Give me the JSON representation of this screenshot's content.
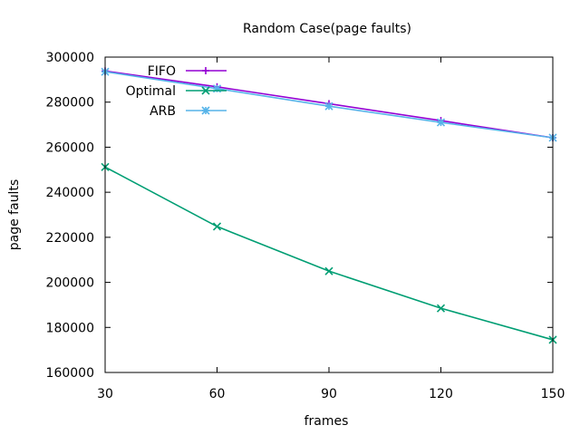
{
  "chart_data": {
    "type": "line",
    "title": "Random Case(page faults)",
    "xlabel": "frames",
    "ylabel": "page faults",
    "x": [
      30,
      60,
      90,
      120,
      150
    ],
    "xlim": [
      30,
      150
    ],
    "ylim": [
      160000,
      300000
    ],
    "xticks": [
      30,
      60,
      90,
      120,
      150
    ],
    "yticks": [
      160000,
      180000,
      200000,
      220000,
      240000,
      260000,
      280000,
      300000
    ],
    "grid": false,
    "legend_position": "top-left",
    "series": [
      {
        "name": "FIFO",
        "color": "#9400d3",
        "marker": "plus",
        "values": [
          293800,
          286800,
          279300,
          271800,
          264200
        ]
      },
      {
        "name": "Optimal",
        "color": "#009e73",
        "marker": "cross",
        "values": [
          251200,
          224800,
          205000,
          188500,
          174500
        ]
      },
      {
        "name": "ARB",
        "color": "#56b4e9",
        "marker": "star",
        "values": [
          293500,
          286000,
          278200,
          271000,
          264200
        ]
      }
    ]
  }
}
